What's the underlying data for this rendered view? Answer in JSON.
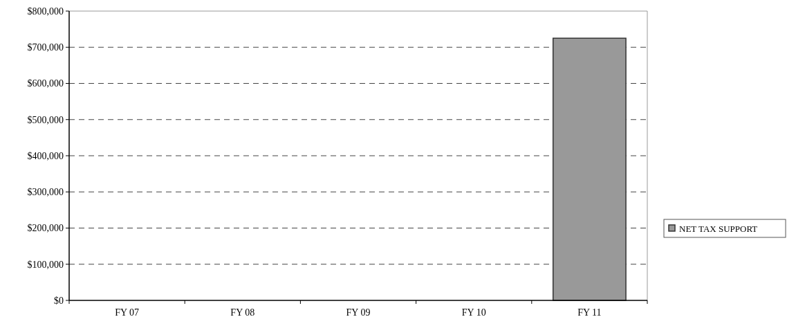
{
  "chart_data": {
    "type": "bar",
    "categories": [
      "FY 07",
      "FY 08",
      "FY 09",
      "FY 10",
      "FY 11"
    ],
    "series": [
      {
        "name": "NET TAX SUPPORT",
        "color": "#999999",
        "values": [
          0,
          0,
          0,
          0,
          725000
        ]
      }
    ],
    "ylim": [
      0,
      800000
    ],
    "yticks": [
      {
        "value": 0,
        "label": "$0"
      },
      {
        "value": 100000,
        "label": "$100,000"
      },
      {
        "value": 200000,
        "label": "$200,000"
      },
      {
        "value": 300000,
        "label": "$300,000"
      },
      {
        "value": 400000,
        "label": "$400,000"
      },
      {
        "value": 500000,
        "label": "$500,000"
      },
      {
        "value": 600000,
        "label": "$600,000"
      },
      {
        "value": 700000,
        "label": "$700,000"
      },
      {
        "value": 800000,
        "label": "$800,000"
      }
    ],
    "grid": "y",
    "legend": "right"
  }
}
